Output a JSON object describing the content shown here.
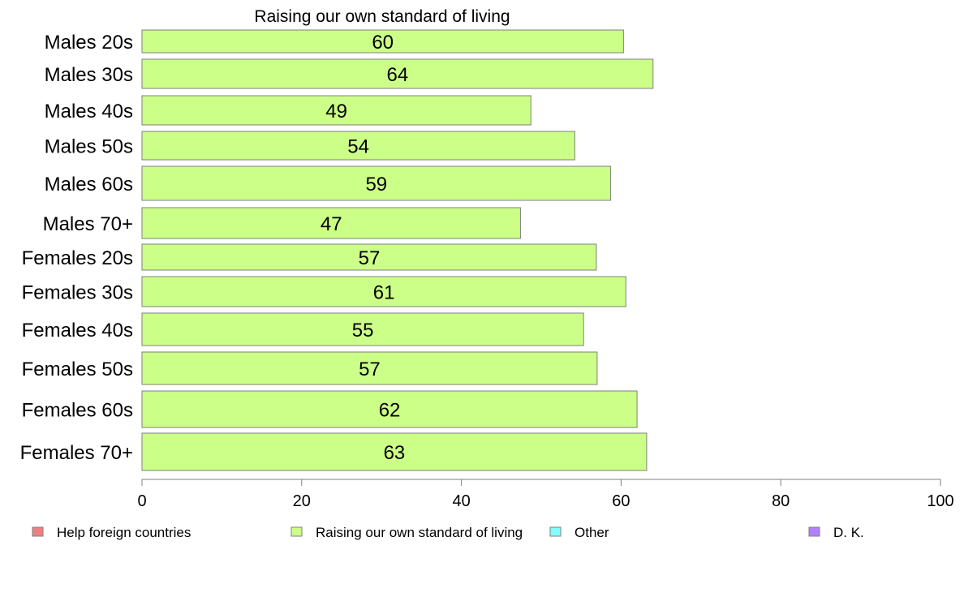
{
  "chart_data": {
    "type": "bar",
    "orientation": "horizontal",
    "title": "Raising our own standard of living",
    "categories": [
      "Males 20s",
      "Males 30s",
      "Males 40s",
      "Males 50s",
      "Males 60s",
      "Males 70+",
      "Females 20s",
      "Females 30s",
      "Females 40s",
      "Females 50s",
      "Females 60s",
      "Females 70+"
    ],
    "series": [
      {
        "name": "Raising our own standard of living",
        "values": [
          60.3,
          64.0,
          48.7,
          54.2,
          58.7,
          47.4,
          56.9,
          60.6,
          55.3,
          57.0,
          62.0,
          63.2
        ],
        "labels": [
          "60",
          "64",
          "49",
          "54",
          "59",
          "47",
          "57",
          "61",
          "55",
          "57",
          "62",
          "63"
        ],
        "color": "#ccff88"
      }
    ],
    "xlim": [
      0,
      100
    ],
    "xticks": [
      "0",
      "20",
      "40",
      "60",
      "80",
      "100"
    ],
    "xtick_values": [
      0,
      20,
      40,
      60,
      80,
      100
    ],
    "grid": false,
    "legend_placement": "bottom",
    "legend": [
      {
        "label": "Help foreign countries",
        "color": "#f08080"
      },
      {
        "label": "Raising our own standard of living",
        "color": "#ccff88"
      },
      {
        "label": "Other",
        "color": "#80ffff"
      },
      {
        "label": "D. K.",
        "color": "#b380ff"
      }
    ]
  }
}
